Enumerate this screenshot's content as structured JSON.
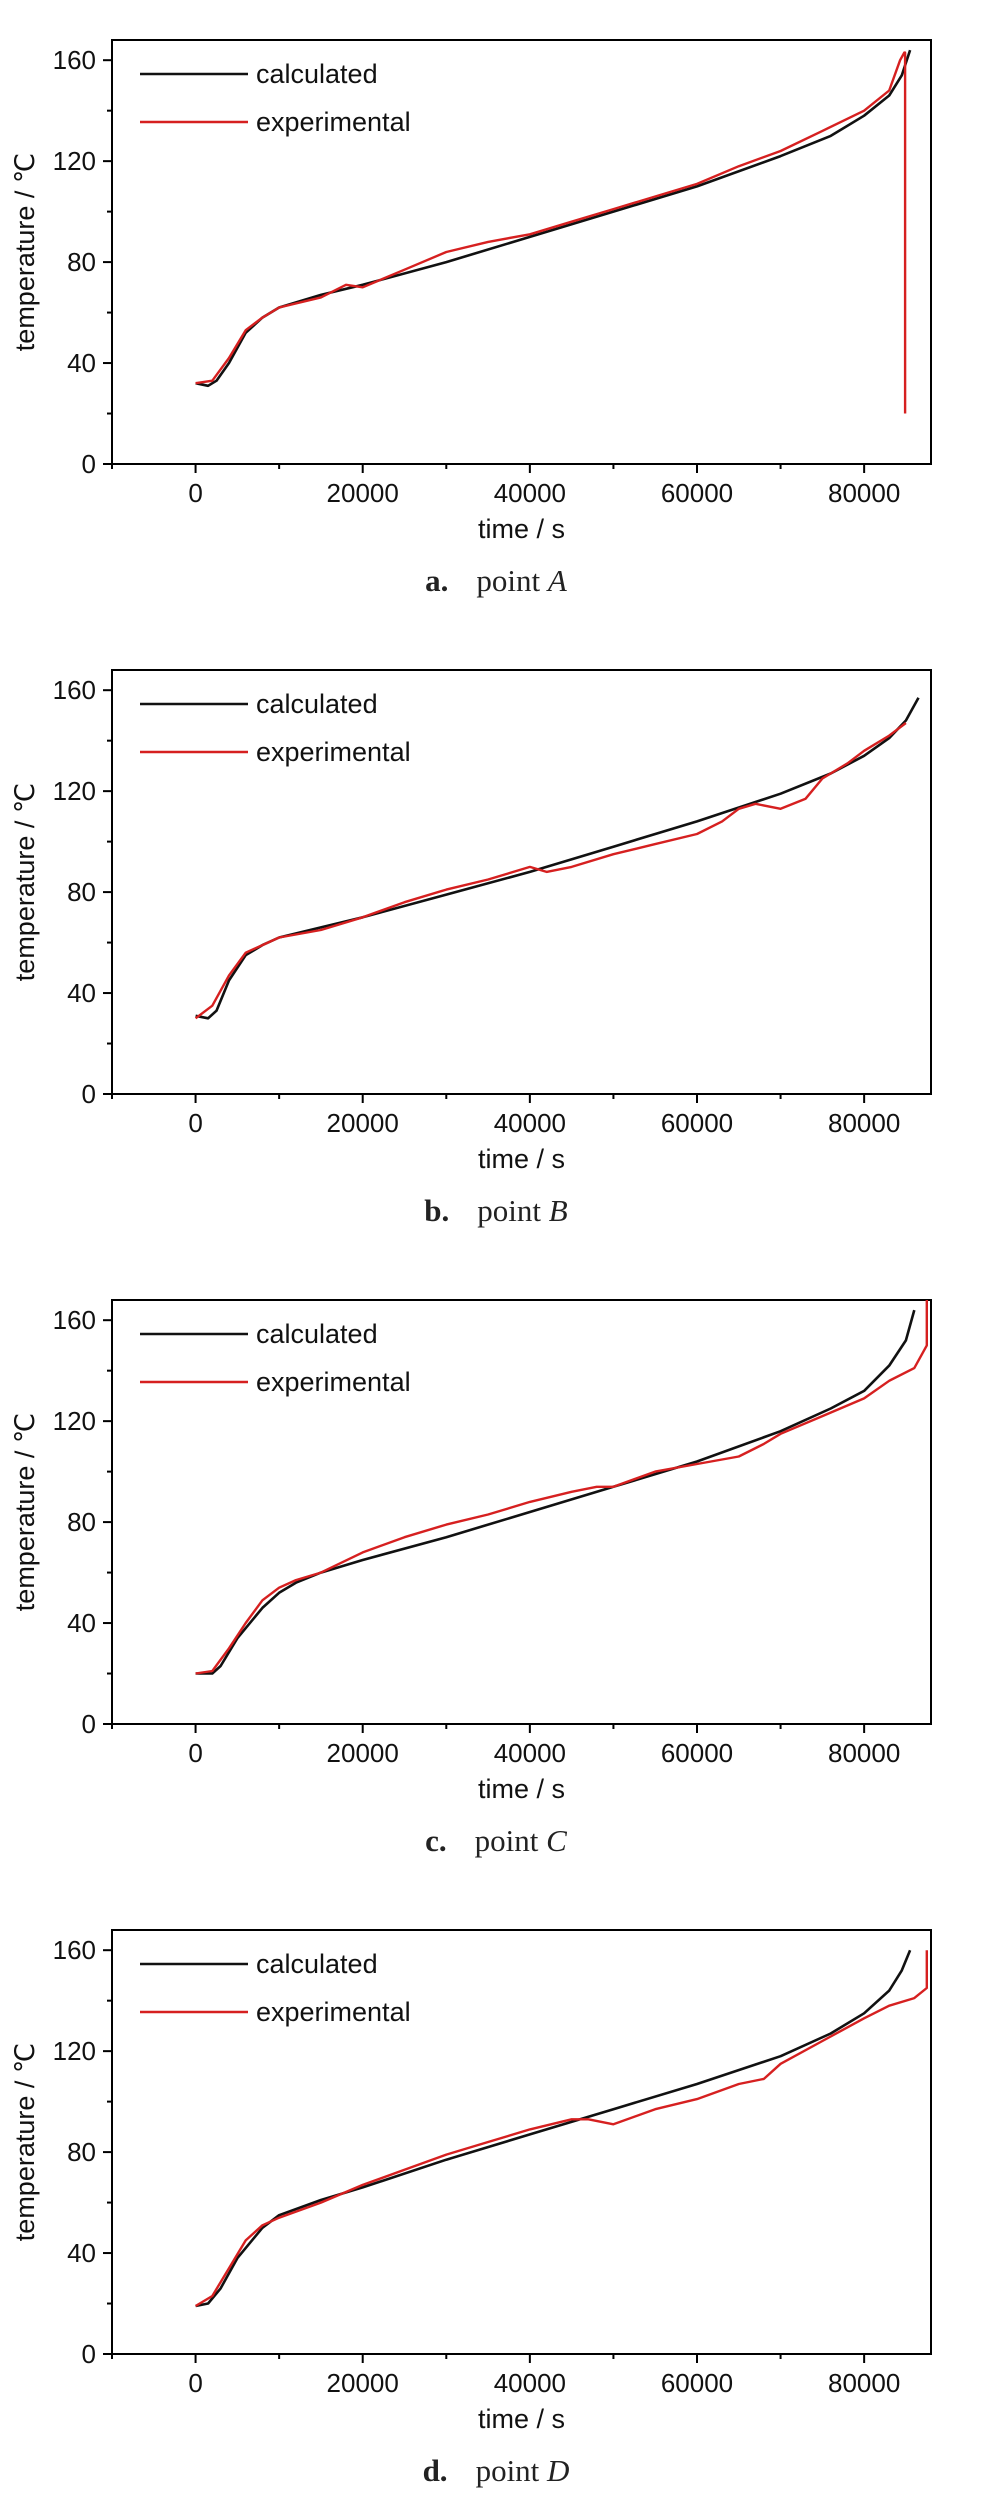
{
  "colors": {
    "calculated": "#111111",
    "experimental": "#d62020"
  },
  "chart_data": [
    {
      "type": "line",
      "caption_letter": "a.",
      "caption_text": "point",
      "caption_point": "A",
      "xlabel": "time / s",
      "ylabel": "temperature / ℃",
      "xlim": [
        -10000,
        88000
      ],
      "ylim": [
        0,
        168
      ],
      "xticks": [
        "0",
        "20000",
        "40000",
        "60000",
        "80000"
      ],
      "yticks": [
        "0",
        "40",
        "80",
        "120",
        "160"
      ],
      "legend_position": "top-left",
      "series": [
        {
          "name": "calculated",
          "x": [
            0,
            1500,
            2500,
            4000,
            6000,
            8000,
            10000,
            15000,
            20000,
            30000,
            40000,
            50000,
            60000,
            70000,
            76000,
            80000,
            83000,
            84500,
            85500
          ],
          "y": [
            32,
            31,
            33,
            40,
            52,
            58,
            62,
            67,
            71,
            80,
            90,
            100,
            110,
            122,
            130,
            138,
            146,
            154,
            164
          ]
        },
        {
          "name": "experimental",
          "x": [
            0,
            2000,
            4000,
            6000,
            8000,
            10000,
            15000,
            18000,
            20000,
            25000,
            30000,
            35000,
            40000,
            45000,
            50000,
            55000,
            60000,
            65000,
            70000,
            75000,
            80000,
            83000,
            84300,
            84800,
            84900,
            84900
          ],
          "y": [
            32,
            33,
            42,
            53,
            58,
            62,
            66,
            71,
            70,
            77,
            84,
            88,
            91,
            96,
            101,
            106,
            111,
            118,
            124,
            132,
            140,
            148,
            160,
            163,
            163,
            20
          ]
        }
      ]
    },
    {
      "type": "line",
      "caption_letter": "b.",
      "caption_text": "point",
      "caption_point": "B",
      "xlabel": "time / s",
      "ylabel": "temperature / ℃",
      "xlim": [
        -10000,
        88000
      ],
      "ylim": [
        0,
        168
      ],
      "xticks": [
        "0",
        "20000",
        "40000",
        "60000",
        "80000"
      ],
      "yticks": [
        "0",
        "40",
        "80",
        "120",
        "160"
      ],
      "legend_position": "top-left",
      "series": [
        {
          "name": "calculated",
          "x": [
            0,
            1500,
            2500,
            4000,
            6000,
            8000,
            10000,
            15000,
            20000,
            30000,
            40000,
            50000,
            60000,
            70000,
            76000,
            80000,
            83000,
            85000,
            86500
          ],
          "y": [
            31,
            30,
            33,
            45,
            55,
            59,
            62,
            66,
            70,
            79,
            88,
            98,
            108,
            119,
            127,
            134,
            141,
            148,
            157
          ]
        },
        {
          "name": "experimental",
          "x": [
            0,
            2000,
            4000,
            6000,
            8000,
            10000,
            15000,
            20000,
            25000,
            30000,
            35000,
            40000,
            42000,
            45000,
            50000,
            55000,
            60000,
            63000,
            65000,
            67000,
            70000,
            73000,
            75000,
            78000,
            80000,
            83000,
            85000
          ],
          "y": [
            30,
            35,
            47,
            56,
            59,
            62,
            65,
            70,
            76,
            81,
            85,
            90,
            88,
            90,
            95,
            99,
            103,
            108,
            113,
            115,
            113,
            117,
            125,
            131,
            136,
            142,
            147
          ]
        }
      ]
    },
    {
      "type": "line",
      "caption_letter": "c.",
      "caption_text": "point",
      "caption_point": "C",
      "xlabel": "time / s",
      "ylabel": "temperature / ℃",
      "xlim": [
        -10000,
        88000
      ],
      "ylim": [
        0,
        168
      ],
      "xticks": [
        "0",
        "20000",
        "40000",
        "60000",
        "80000"
      ],
      "yticks": [
        "0",
        "40",
        "80",
        "120",
        "160"
      ],
      "legend_position": "top-left",
      "series": [
        {
          "name": "calculated",
          "x": [
            0,
            2000,
            3000,
            5000,
            8000,
            10000,
            12000,
            15000,
            20000,
            30000,
            40000,
            50000,
            60000,
            70000,
            76000,
            80000,
            83000,
            85000,
            86000
          ],
          "y": [
            20,
            20,
            23,
            34,
            46,
            52,
            56,
            60,
            65,
            74,
            84,
            94,
            104,
            116,
            125,
            132,
            142,
            152,
            164
          ]
        },
        {
          "name": "experimental",
          "x": [
            0,
            2000,
            4000,
            6000,
            8000,
            10000,
            12000,
            15000,
            20000,
            25000,
            30000,
            35000,
            40000,
            45000,
            48000,
            50000,
            55000,
            60000,
            65000,
            68000,
            70000,
            75000,
            80000,
            83000,
            86000,
            87500,
            87500
          ],
          "y": [
            20,
            21,
            30,
            40,
            49,
            54,
            57,
            60,
            68,
            74,
            79,
            83,
            88,
            92,
            94,
            94,
            100,
            103,
            106,
            111,
            115,
            122,
            129,
            136,
            141,
            150,
            168
          ]
        }
      ]
    },
    {
      "type": "line",
      "caption_letter": "d.",
      "caption_text": "point",
      "caption_point": "D",
      "xlabel": "time / s",
      "ylabel": "temperature / ℃",
      "xlim": [
        -10000,
        88000
      ],
      "ylim": [
        0,
        168
      ],
      "xticks": [
        "0",
        "20000",
        "40000",
        "60000",
        "80000"
      ],
      "yticks": [
        "0",
        "40",
        "80",
        "120",
        "160"
      ],
      "legend_position": "top-left",
      "series": [
        {
          "name": "calculated",
          "x": [
            0,
            1500,
            3000,
            5000,
            8000,
            10000,
            15000,
            20000,
            30000,
            40000,
            50000,
            60000,
            70000,
            76000,
            80000,
            83000,
            84500,
            85500
          ],
          "y": [
            19,
            20,
            26,
            38,
            50,
            55,
            61,
            66,
            77,
            87,
            97,
            107,
            118,
            127,
            135,
            144,
            152,
            160
          ]
        },
        {
          "name": "experimental",
          "x": [
            0,
            2000,
            4000,
            6000,
            8000,
            10000,
            15000,
            20000,
            25000,
            30000,
            35000,
            40000,
            45000,
            47000,
            50000,
            55000,
            60000,
            65000,
            68000,
            70000,
            75000,
            80000,
            83000,
            86000,
            87500,
            87500
          ],
          "y": [
            19,
            23,
            34,
            45,
            51,
            54,
            60,
            67,
            73,
            79,
            84,
            89,
            93,
            93,
            91,
            97,
            101,
            107,
            109,
            115,
            124,
            133,
            138,
            141,
            145,
            160
          ]
        }
      ]
    }
  ]
}
